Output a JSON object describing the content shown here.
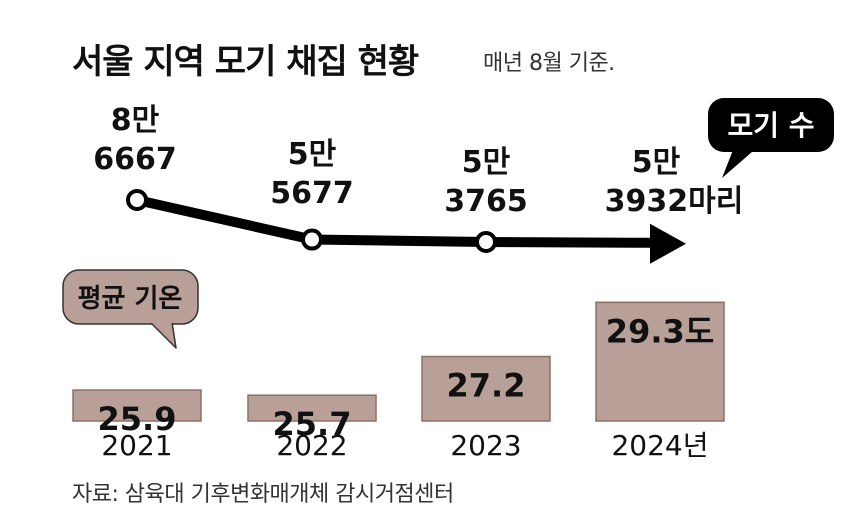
{
  "title": "서울 지역 모기 채집 현황",
  "subtitle": "매년 8월 기준.",
  "source": "자료: 삼육대 기후변화매개체 감시거점센터",
  "colors": {
    "line": "#000000",
    "bar": "#b8a098",
    "bar_border": "#8a7067",
    "callout_mosquito": "#000000",
    "callout_temp": "#b8a098"
  },
  "chart_data": {
    "type": "line+bar",
    "categories": [
      "2021",
      "2022",
      "2023",
      "2024년"
    ],
    "x": [
      2021,
      2022,
      2023,
      2024
    ],
    "series": [
      {
        "name": "모기 수",
        "type": "line",
        "values": [
          86667,
          55677,
          53765,
          53932
        ],
        "labels": [
          [
            "8만",
            "6667"
          ],
          [
            "5만",
            "5677"
          ],
          [
            "5만",
            "3765"
          ],
          [
            "5만",
            "3932마리"
          ]
        ],
        "ylim": [
          50000,
          90000
        ]
      },
      {
        "name": "평균 기온",
        "type": "bar",
        "values": [
          25.9,
          25.7,
          27.2,
          29.3
        ],
        "labels": [
          "25.9",
          "25.7",
          "27.2",
          "29.3도"
        ],
        "ylim": [
          24.7,
          29.7
        ]
      }
    ],
    "legend": "callouts",
    "grid": false
  }
}
